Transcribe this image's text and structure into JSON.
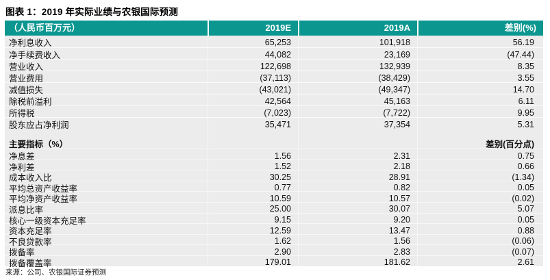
{
  "title": "图表 1：2019 年实际业绩与农银国际预测",
  "colors": {
    "header_bg": "#0B9690",
    "body_bg": "#ECECEC",
    "header_text": "#FFFFFF"
  },
  "table": {
    "columns": [
      "（人民币百万元）",
      "2019E",
      "2019A",
      "差别(%)"
    ],
    "section1_rows": [
      {
        "label": "净利息收入",
        "e2019": "65,253",
        "a2019": "101,918",
        "diff": "56.19"
      },
      {
        "label": "净手续费收入",
        "e2019": "44,082",
        "a2019": "23,169",
        "diff": "(47.44)"
      },
      {
        "label": "营业收入",
        "e2019": "122,698",
        "a2019": "132,939",
        "diff": "8.35"
      },
      {
        "label": "营业费用",
        "e2019": "(37,113)",
        "a2019": "(38,429)",
        "diff": "3.55"
      },
      {
        "label": "减值损失",
        "e2019": "(43,021)",
        "a2019": "(49,347)",
        "diff": "14.70"
      },
      {
        "label": "除税前溢利",
        "e2019": "42,564",
        "a2019": "45,163",
        "diff": "6.11"
      },
      {
        "label": "所得税",
        "e2019": "(7,023)",
        "a2019": "(7,722)",
        "diff": "9.95"
      },
      {
        "label": "股东应占净利润",
        "e2019": "35,471",
        "a2019": "37,354",
        "diff": "5.31"
      }
    ],
    "section2_header": {
      "label": "主要指标（%）",
      "diff_label": "差别(百分点)"
    },
    "section2_rows": [
      {
        "label": "净息差",
        "e2019": "1.56",
        "a2019": "2.31",
        "diff": "0.75"
      },
      {
        "label": "净利差",
        "e2019": "1.52",
        "a2019": "2.18",
        "diff": "0.66"
      },
      {
        "label": "成本收入比",
        "e2019": "30.25",
        "a2019": "28.91",
        "diff": "(1.34)"
      },
      {
        "label": "平均总资产收益率",
        "e2019": "0.77",
        "a2019": "0.82",
        "diff": "0.05"
      },
      {
        "label": "平均净资产收益率",
        "e2019": "10.59",
        "a2019": "10.57",
        "diff": "(0.02)"
      },
      {
        "label": "派息比率",
        "e2019": "25.00",
        "a2019": "30.07",
        "diff": "5.07"
      },
      {
        "label": "核心一级资本充足率",
        "e2019": "9.15",
        "a2019": "9.20",
        "diff": "0.05"
      },
      {
        "label": "资本充足率",
        "e2019": "12.59",
        "a2019": "13.47",
        "diff": "0.88"
      },
      {
        "label": "不良贷款率",
        "e2019": "1.62",
        "a2019": "1.56",
        "diff": "(0.06)"
      },
      {
        "label": "拨备率",
        "e2019": "2.90",
        "a2019": "2.83",
        "diff": "(0.07)"
      },
      {
        "label": "拨备覆盖率",
        "e2019": "179.01",
        "a2019": "181.62",
        "diff": "2.61"
      }
    ]
  },
  "source": "来源：公司、农银国际证券预测"
}
